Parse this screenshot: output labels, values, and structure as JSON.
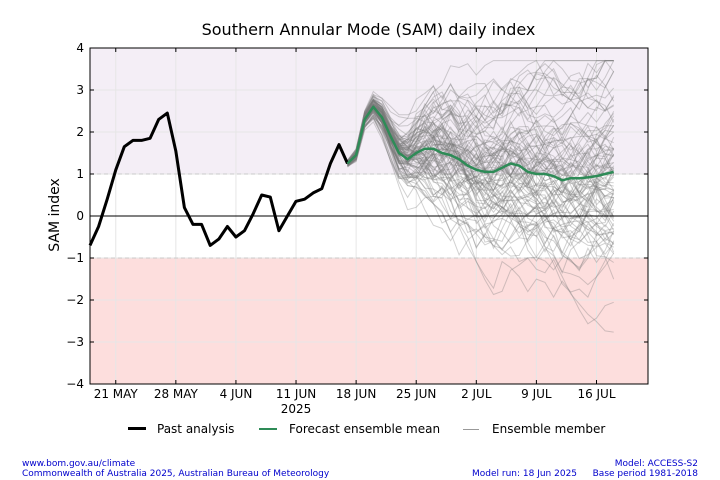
{
  "chart_data": {
    "type": "line",
    "title": "Southern Annular Mode (SAM) daily index",
    "ylabel": "SAM index",
    "ylim": [
      -4,
      4
    ],
    "yticks": [
      "4",
      "3",
      "2",
      "1",
      "0",
      "−1",
      "−2",
      "−3",
      "−4"
    ],
    "xlim": [
      "2025-05-18",
      "2025-07-22"
    ],
    "xticks": [
      {
        "date": "2025-05-21",
        "label": "21 MAY"
      },
      {
        "date": "2025-05-28",
        "label": "28 MAY"
      },
      {
        "date": "2025-06-04",
        "label": "4 JUN"
      },
      {
        "date": "2025-06-11",
        "label": "11 JUN"
      },
      {
        "date": "2025-06-18",
        "label": "18 JUN"
      },
      {
        "date": "2025-06-25",
        "label": "25 JUN"
      },
      {
        "date": "2025-07-02",
        "label": "2 JUL"
      },
      {
        "date": "2025-07-09",
        "label": "9 JUL"
      },
      {
        "date": "2025-07-16",
        "label": "16 JUL"
      }
    ],
    "year_label": "2025",
    "grid": true,
    "shaded_bands": [
      {
        "ymin": 1,
        "ymax": 4,
        "color": "#f4eef6"
      },
      {
        "ymin": -4,
        "ymax": -1,
        "color": "#fddedd"
      }
    ],
    "forecast_start": "2025-06-18",
    "series": [
      {
        "name": "Past analysis",
        "color": "#000000",
        "start": "2025-05-18",
        "values": [
          -0.7,
          -0.25,
          0.4,
          1.1,
          1.65,
          1.8,
          1.8,
          1.85,
          2.3,
          2.45,
          1.55,
          0.2,
          -0.2,
          -0.2,
          -0.7,
          -0.55,
          -0.25,
          -0.5,
          -0.35,
          0.05,
          0.5,
          0.45,
          -0.35,
          0.0,
          0.35,
          0.4,
          0.55,
          0.65,
          1.25,
          1.7,
          1.25
        ]
      },
      {
        "name": "Forecast ensemble mean",
        "color": "#2e8b57",
        "start": "2025-06-17",
        "values": [
          1.25,
          1.45,
          2.3,
          2.6,
          2.35,
          1.9,
          1.5,
          1.35,
          1.5,
          1.6,
          1.6,
          1.5,
          1.45,
          1.35,
          1.2,
          1.1,
          1.05,
          1.05,
          1.15,
          1.25,
          1.2,
          1.05,
          1.0,
          1.0,
          0.95,
          0.85,
          0.9,
          0.9,
          0.92,
          0.95,
          1.0,
          1.05
        ]
      }
    ],
    "ensemble_member_label": "Ensemble member"
  },
  "footer": {
    "left_line1": "www.bom.gov.au/climate",
    "left_line2": "Commonwealth of Australia 2025, Australian Bureau of Meteorology",
    "center": "Model run: 18 Jun 2025",
    "right_line1": "Model: ACCESS-S2",
    "right_line2": "Base period 1981-2018"
  }
}
